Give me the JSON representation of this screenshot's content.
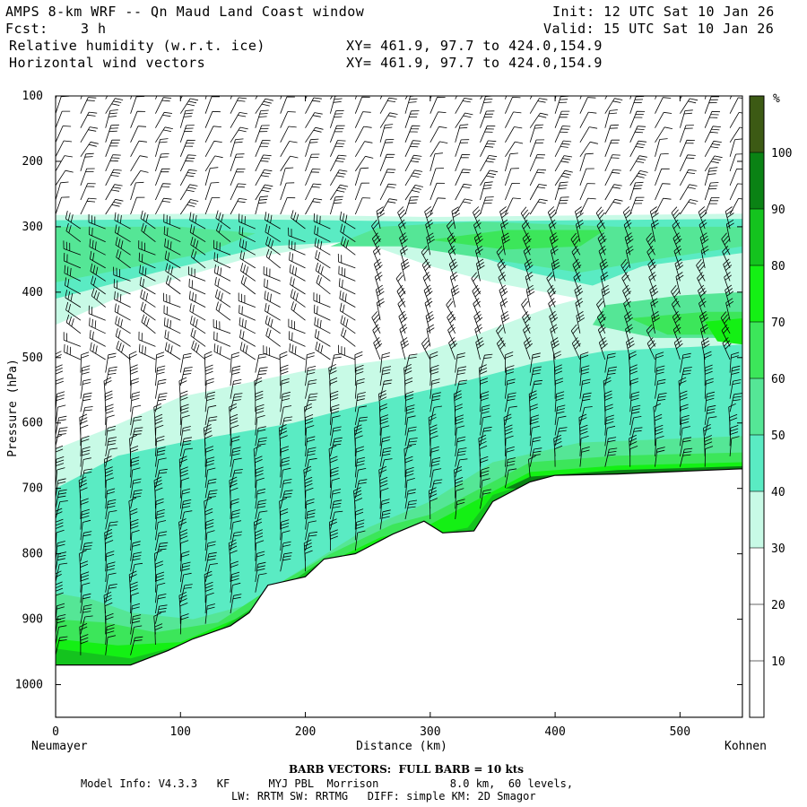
{
  "header": {
    "title": "AMPS 8-km WRF -- Qn Maud Land Coast window",
    "fcst_label": "Fcst:",
    "fcst_value": "3 h",
    "init": "Init: 12 UTC Sat 10 Jan 26",
    "valid": "Valid: 15 UTC Sat 10 Jan 26",
    "field1": "Relative humidity (w.r.t. ice)",
    "field2": "Horizontal wind vectors",
    "xy1": "XY= 461.9, 97.7 to 424.0,154.9",
    "xy2": "XY= 461.9, 97.7 to 424.0,154.9"
  },
  "footer": {
    "barb_note": "BARB VECTORS:  FULL BARB = 10 kts",
    "model_info_1": "Model Info: V4.3.3   KF      MYJ PBL  Morrison           8.0 km,  60 levels,",
    "model_info_2": "LW: RRTM SW: RRTMG   DIFF: simple KM: 2D Smagor"
  },
  "chart_data": {
    "type": "heatmap",
    "title": "Relative humidity (w.r.t. ice)",
    "xlabel": "Distance (km)",
    "ylabel": "Pressure (hPa)",
    "x_range": [
      0,
      550
    ],
    "x_ticks": [
      0,
      100,
      200,
      300,
      400,
      500
    ],
    "y_range": [
      100,
      1050
    ],
    "y_scale": "linear-inverted",
    "y_ticks": [
      100,
      200,
      300,
      400,
      500,
      600,
      700,
      800,
      900,
      1000
    ],
    "x_endpoint_labels": {
      "left": "Neumayer",
      "right": "Kohnen"
    },
    "colorbar": {
      "unit": "%",
      "ticks": [
        10,
        20,
        30,
        40,
        50,
        60,
        70,
        80,
        90,
        100
      ],
      "levels": [
        {
          "min": 0,
          "max": 30,
          "color": "#ffffff"
        },
        {
          "min": 30,
          "max": 40,
          "color": "#c8fae6"
        },
        {
          "min": 40,
          "max": 50,
          "color": "#5aebc3"
        },
        {
          "min": 50,
          "max": 60,
          "color": "#55e696"
        },
        {
          "min": 60,
          "max": 70,
          "color": "#3ce65a"
        },
        {
          "min": 70,
          "max": 80,
          "color": "#14f014"
        },
        {
          "min": 80,
          "max": 90,
          "color": "#14c31e"
        },
        {
          "min": 90,
          "max": 100,
          "color": "#0a8214"
        },
        {
          "min": 100,
          "max": 110,
          "color": "#3c5a14"
        }
      ]
    },
    "terrain": [
      {
        "x": 0,
        "p": 970
      },
      {
        "x": 60,
        "p": 970
      },
      {
        "x": 90,
        "p": 948
      },
      {
        "x": 110,
        "p": 930
      },
      {
        "x": 140,
        "p": 910
      },
      {
        "x": 155,
        "p": 890
      },
      {
        "x": 170,
        "p": 848
      },
      {
        "x": 200,
        "p": 835
      },
      {
        "x": 215,
        "p": 808
      },
      {
        "x": 240,
        "p": 800
      },
      {
        "x": 270,
        "p": 770
      },
      {
        "x": 295,
        "p": 750
      },
      {
        "x": 310,
        "p": 768
      },
      {
        "x": 335,
        "p": 765
      },
      {
        "x": 350,
        "p": 720
      },
      {
        "x": 380,
        "p": 690
      },
      {
        "x": 400,
        "p": 680
      },
      {
        "x": 450,
        "p": 678
      },
      {
        "x": 550,
        "p": 670
      }
    ],
    "wind_columns_x": [
      0,
      20,
      40,
      60,
      80,
      100,
      120,
      140,
      160,
      180,
      200,
      220,
      240,
      260,
      280,
      300,
      320,
      340,
      360,
      380,
      400,
      420,
      440,
      460,
      480,
      500,
      520,
      540
    ]
  }
}
